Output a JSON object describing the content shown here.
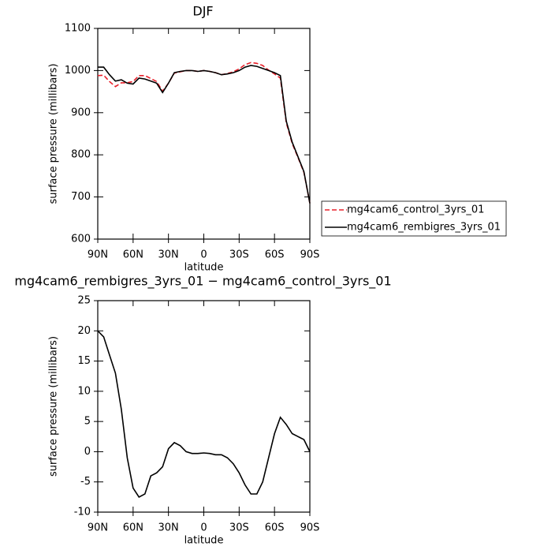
{
  "chart_data": [
    {
      "type": "line",
      "title": "DJF",
      "xlabel": "latitude",
      "ylabel": "surface pressure (millibars)",
      "x": [
        90,
        85,
        80,
        75,
        70,
        65,
        60,
        55,
        50,
        45,
        40,
        35,
        30,
        25,
        20,
        15,
        10,
        5,
        0,
        -5,
        -10,
        -15,
        -20,
        -25,
        -30,
        -35,
        -40,
        -45,
        -50,
        -55,
        -60,
        -65,
        -70,
        -75,
        -80,
        -85,
        -90
      ],
      "xlim": [
        90,
        -90
      ],
      "xticks": [
        {
          "value": 90,
          "label": "90N"
        },
        {
          "value": 60,
          "label": "60N"
        },
        {
          "value": 30,
          "label": "30N"
        },
        0,
        {
          "value": -30,
          "label": "30S"
        },
        {
          "value": -60,
          "label": "60S"
        },
        {
          "value": -90,
          "label": "90S"
        }
      ],
      "ylim": [
        600,
        1100
      ],
      "yticks": [
        600,
        700,
        800,
        900,
        1000,
        1100
      ],
      "legend": "right",
      "series": [
        {
          "name": "mg4cam6_control_3yrs_01",
          "color": "#e8202a",
          "dash": "dashed",
          "values": [
            988,
            989,
            974,
            962,
            971,
            971,
            974,
            988,
            988,
            981,
            974,
            951,
            970,
            994,
            997,
            1000,
            1000,
            998,
            1000,
            998,
            995,
            990,
            993,
            997,
            1004,
            1014,
            1019,
            1017,
            1012,
            1001,
            992,
            982,
            876,
            827,
            793,
            758,
            685
          ]
        },
        {
          "name": "mg4cam6_rembigres_3yrs_01",
          "color": "#000000",
          "dash": "solid",
          "values": [
            1008,
            1008,
            990,
            975,
            978,
            970,
            968,
            982,
            980,
            975,
            970,
            948,
            970,
            995,
            998,
            1000,
            1000,
            998,
            1000,
            998,
            995,
            990,
            992,
            995,
            1000,
            1008,
            1012,
            1010,
            1005,
            1000,
            995,
            988,
            880,
            830,
            795,
            760,
            685
          ]
        }
      ]
    },
    {
      "type": "line",
      "title": "mg4cam6_rembigres_3yrs_01 − mg4cam6_control_3yrs_01",
      "xlabel": "latitude",
      "ylabel": "surface pressure (millibars)",
      "x": [
        90,
        85,
        80,
        75,
        70,
        65,
        60,
        55,
        50,
        45,
        40,
        35,
        30,
        25,
        20,
        15,
        10,
        5,
        0,
        -5,
        -10,
        -15,
        -20,
        -25,
        -30,
        -35,
        -40,
        -45,
        -50,
        -55,
        -60,
        -65,
        -70,
        -75,
        -80,
        -85,
        -90
      ],
      "xlim": [
        90,
        -90
      ],
      "xticks": [
        {
          "value": 90,
          "label": "90N"
        },
        {
          "value": 60,
          "label": "60N"
        },
        {
          "value": 30,
          "label": "30N"
        },
        0,
        {
          "value": -30,
          "label": "30S"
        },
        {
          "value": -60,
          "label": "60S"
        },
        {
          "value": -90,
          "label": "90S"
        }
      ],
      "ylim": [
        -10,
        25
      ],
      "yticks": [
        -10,
        -5,
        0,
        5,
        10,
        15,
        20,
        25
      ],
      "series": [
        {
          "color": "#000000",
          "dash": "solid",
          "values": [
            20,
            19,
            16,
            13,
            7,
            -1,
            -6,
            -7.5,
            -7,
            -4,
            -3.5,
            -2.5,
            0.5,
            1.5,
            1,
            0,
            -0.3,
            -0.3,
            -0.2,
            -0.3,
            -0.5,
            -0.5,
            -1,
            -2,
            -3.5,
            -5.5,
            -7,
            -7,
            -5,
            -1,
            3,
            5.7,
            4.5,
            3,
            2.5,
            2,
            0
          ]
        }
      ]
    }
  ]
}
